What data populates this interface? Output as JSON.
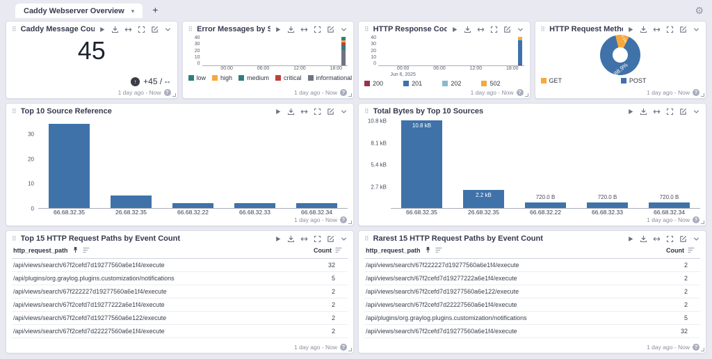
{
  "tabbar": {
    "active_tab": "Caddy Webserver Overview",
    "new_tab_label": "+"
  },
  "icons": {
    "gear": "⚙",
    "drag_handle": "⠿",
    "caret_down": "▾",
    "help": "?",
    "trend_up": "↑"
  },
  "widgets": {
    "message_count": {
      "title": "Caddy Message Count",
      "value": "45",
      "trend": "+45 / --",
      "timerange": "1 day ago - Now"
    },
    "severity": {
      "title": "Error Messages by Severity Ov...",
      "timerange": "1 day ago - Now"
    },
    "codes": {
      "title": "HTTP Response Codes Over Ti...",
      "timerange": "1 day ago - Now"
    },
    "methods": {
      "title": "HTTP Request Methods by Eve...",
      "timerange": "1 day ago - Now"
    },
    "sources": {
      "title": "Top 10 Source Reference",
      "timerange": "1 day ago - Now"
    },
    "bytes": {
      "title": "Total Bytes by Top 10 Sources",
      "timerange": "1 day ago - Now"
    },
    "top_paths": {
      "title": "Top 15 HTTP Request Paths by Event Count",
      "columns": {
        "path": "http_request_path",
        "count": "Count"
      },
      "rows": [
        [
          "/api/views/search/67f2cefd7d19277560a6e1f4/execute",
          "32"
        ],
        [
          "/api/plugins/org.graylog.plugins.customization/notifications",
          "5"
        ],
        [
          "/api/views/search/67f222227d19277560a6e1f4/execute",
          "2"
        ],
        [
          "/api/views/search/67f2cefd7d19277222a6e1f4/execute",
          "2"
        ],
        [
          "/api/views/search/67f2cefd7d19277560a6e122/execute",
          "2"
        ],
        [
          "/api/views/search/67f2cefd7d22227560a6e1f4/execute",
          "2"
        ]
      ],
      "timerange": "1 day ago - Now"
    },
    "rare_paths": {
      "title": "Rarest 15 HTTP Request Paths by Event Count",
      "columns": {
        "path": "http_request_path",
        "count": "Count"
      },
      "rows": [
        [
          "/api/views/search/67f222227d19277560a6e1f4/execute",
          "2"
        ],
        [
          "/api/views/search/67f2cefd7d19277222a6e1f4/execute",
          "2"
        ],
        [
          "/api/views/search/67f2cefd7d19277560a6e122/execute",
          "2"
        ],
        [
          "/api/views/search/67f2cefd7d22227560a6e1f4/execute",
          "2"
        ],
        [
          "/api/plugins/org.graylog.plugins.customization/notifications",
          "5"
        ],
        [
          "/api/views/search/67f2cefd7d19277560a6e1f4/execute",
          "32"
        ]
      ],
      "timerange": "1 day ago - Now"
    }
  },
  "chart_data": [
    {
      "id": "severity",
      "type": "bar",
      "subtype": "stacked-time-series",
      "title": "Error Messages by Severity Ov...",
      "x_ticks": [
        "00:00",
        "06:00",
        "12:00",
        "18:00"
      ],
      "x_tick_pct": [
        17,
        42,
        67,
        92
      ],
      "y_ticks": [
        40,
        30,
        20,
        10,
        0
      ],
      "ylim": [
        0,
        40
      ],
      "scale_max": 47,
      "legend_position": "bottom",
      "series": [
        {
          "name": "low",
          "color": "#2f7e7d",
          "value": 5
        },
        {
          "name": "high",
          "color": "#f6a83c",
          "value": 4
        },
        {
          "name": "medium",
          "color": "#2f7e7d",
          "value": 7
        },
        {
          "name": "critical",
          "color": "#bf4038",
          "value": 4
        },
        {
          "name": "informational",
          "color": "#6e7480",
          "value": 24
        }
      ],
      "stack_order_bottom_to_top": [
        "informational",
        "medium",
        "critical",
        "high",
        "low"
      ]
    },
    {
      "id": "codes",
      "type": "bar",
      "subtype": "stacked-time-series",
      "title": "HTTP Response Codes Over Ti...",
      "x_ticks": [
        "00:00",
        "06:00",
        "12:00",
        "18:00"
      ],
      "x_tick_pct": [
        17,
        42,
        67,
        92
      ],
      "date_label": "Jun 6, 2025",
      "y_ticks": [
        40,
        30,
        20,
        10,
        0
      ],
      "ylim": [
        0,
        40
      ],
      "scale_max": 47,
      "legend_position": "bottom",
      "series": [
        {
          "name": "200",
          "color": "#9c2f50",
          "value": 1
        },
        {
          "name": "201",
          "color": "#3f72a9",
          "value": 38
        },
        {
          "name": "202",
          "color": "#88bacc",
          "value": 1
        },
        {
          "name": "502",
          "color": "#f6a83c",
          "value": 4
        }
      ],
      "stack_order_bottom_to_top": [
        "200",
        "201",
        "202",
        "502"
      ]
    },
    {
      "id": "methods",
      "type": "pie",
      "title": "HTTP Request Methods by Eve...",
      "labels": [
        "GET",
        "POST"
      ],
      "values": [
        11.1,
        88.9
      ],
      "colors": [
        "#f6a83c",
        "#3f72a9"
      ],
      "slice_labels": [
        "11.1%",
        "88.9%"
      ],
      "donut": true,
      "start_angle_deg": -14,
      "legend_position": "bottom"
    },
    {
      "id": "sources",
      "type": "bar",
      "title": "Top 10 Source Reference",
      "categories": [
        "66.68.32.35",
        "26.68.32.35",
        "66.68.32.22",
        "66.68.32.33",
        "66.68.32.34"
      ],
      "values": [
        34,
        5,
        2,
        2,
        2
      ],
      "y_ticks": [
        0,
        10,
        20,
        30
      ],
      "ylim": [
        0,
        36
      ],
      "axis_max": 36,
      "bar_color": "#3f72a9",
      "grid": false
    },
    {
      "id": "bytes",
      "type": "bar",
      "title": "Total Bytes by Top 10 Sources",
      "categories": [
        "66.68.32.35",
        "26.68.32.35",
        "66.68.32.22",
        "66.68.32.33",
        "66.68.32.34"
      ],
      "values": [
        10800,
        2200,
        720,
        720,
        720
      ],
      "value_labels": [
        "10.8 kB",
        "2.2 kB",
        "720.0 B",
        "720.0 B",
        "720.0 B"
      ],
      "y_tick_values": [
        2700,
        5400,
        8100,
        10800
      ],
      "y_ticks": [
        "2.7 kB",
        "5.4 kB",
        "8.1 kB",
        "10.8 kB"
      ],
      "ylim": [
        0,
        11000
      ],
      "axis_max": 11000,
      "bar_color": "#3f72a9",
      "grid": false
    }
  ]
}
